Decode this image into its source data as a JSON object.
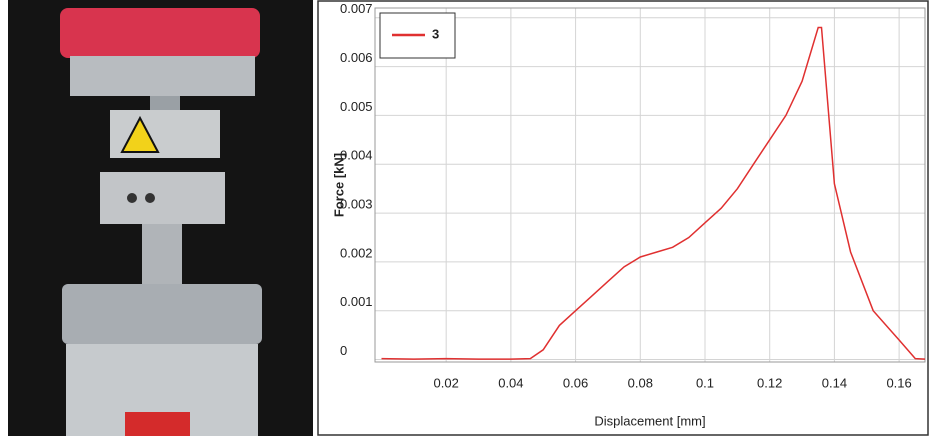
{
  "chart_data": {
    "type": "line",
    "x_label": "Displacement [mm]",
    "y_label": "Force [kN]",
    "x": [
      0,
      0.01,
      0.02,
      0.03,
      0.04,
      0.046,
      0.05,
      0.055,
      0.06,
      0.065,
      0.07,
      0.075,
      0.08,
      0.085,
      0.09,
      0.095,
      0.1,
      0.105,
      0.11,
      0.115,
      0.12,
      0.125,
      0.13,
      0.135,
      0.136,
      0.14,
      0.145,
      0.152,
      0.16,
      0.165,
      0.168
    ],
    "series": [
      {
        "name": "3",
        "color": "#e03030",
        "values": [
          2e-05,
          1e-05,
          2e-05,
          1e-05,
          1e-05,
          2e-05,
          0.0002,
          0.0007,
          0.001,
          0.0013,
          0.0016,
          0.0019,
          0.0021,
          0.0022,
          0.0023,
          0.0025,
          0.0028,
          0.0031,
          0.0035,
          0.004,
          0.0045,
          0.005,
          0.0057,
          0.0068,
          0.0068,
          0.0036,
          0.0022,
          0.001,
          0.0004,
          2e-05,
          1e-05
        ]
      }
    ],
    "xlim": [
      -0.002,
      0.168
    ],
    "ylim": [
      -5e-05,
      0.0072
    ],
    "xticks": [
      0.02,
      0.04,
      0.06,
      0.08,
      0.1,
      0.12,
      0.14,
      0.16
    ],
    "yticks": [
      0,
      0.001,
      0.002,
      0.003,
      0.004,
      0.005,
      0.006,
      0.007
    ],
    "grid": true,
    "legend": "upper-left"
  }
}
